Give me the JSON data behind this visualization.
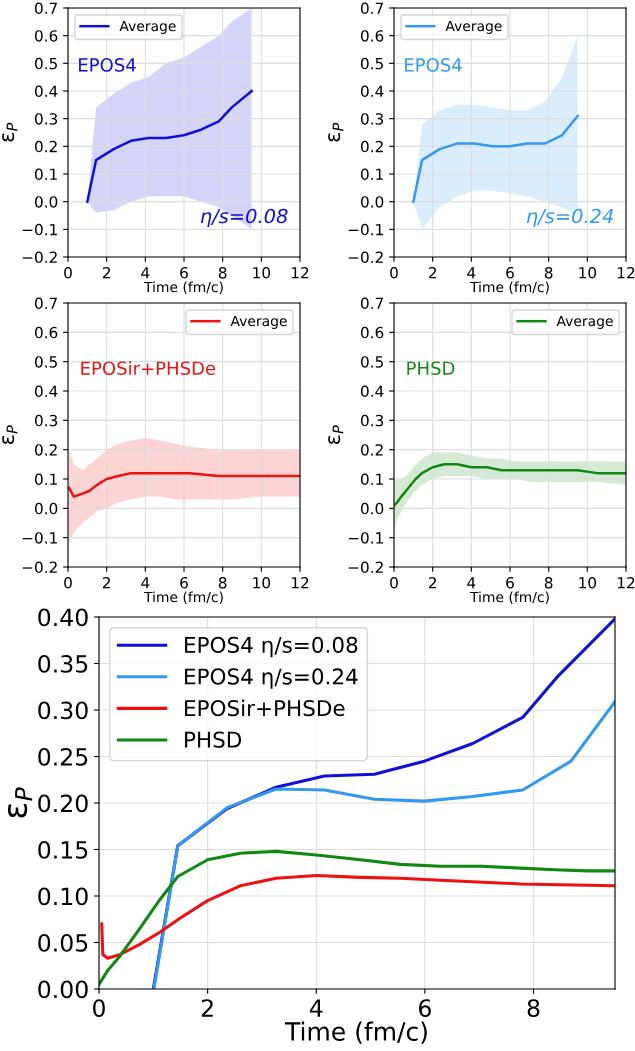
{
  "chart_data": [
    {
      "type": "line",
      "xlabel": "Time (fm/c)",
      "ylabel": "ε$_{P}$",
      "xlim": [
        0,
        12
      ],
      "ylim": [
        -0.2,
        0.7
      ],
      "xticks": [
        0,
        2,
        4,
        6,
        8,
        10,
        12
      ],
      "yticks": [
        {
          "value": -0.2,
          "label": "−0.2"
        },
        {
          "value": -0.1,
          "label": "−0.1"
        },
        {
          "value": 0,
          "label": "0.0"
        },
        {
          "value": 0.1,
          "label": "0.1"
        },
        {
          "value": 0.2,
          "label": "0.2"
        },
        {
          "value": 0.3,
          "label": "0.3"
        },
        {
          "value": 0.4,
          "label": "0.4"
        },
        {
          "value": 0.5,
          "label": "0.5"
        },
        {
          "value": 0.6,
          "label": "0.6"
        },
        {
          "value": 0.7,
          "label": "0.7"
        }
      ],
      "grid": true,
      "legend": "top left",
      "annotations": [
        "EPOS4",
        "η/s=0.08"
      ],
      "series": [
        {
          "name": "Average",
          "color": "#1010d8",
          "x": [
            1.0,
            1.45,
            2.36,
            3.26,
            4.15,
            5.07,
            5.99,
            6.88,
            7.8,
            8.46,
            9.5
          ],
          "values": [
            0.0,
            0.15,
            0.19,
            0.22,
            0.23,
            0.23,
            0.24,
            0.26,
            0.29,
            0.34,
            0.4
          ],
          "lower": [
            0.0,
            -0.04,
            -0.03,
            0.0,
            0.02,
            0.02,
            0.02,
            0.0,
            -0.02,
            -0.05,
            -0.1
          ],
          "upper": [
            0.0,
            0.34,
            0.39,
            0.43,
            0.45,
            0.5,
            0.52,
            0.56,
            0.6,
            0.65,
            0.7
          ]
        }
      ]
    },
    {
      "type": "line",
      "xlabel": "Time (fm/c)",
      "ylabel": "ε$_{P}$",
      "xlim": [
        0,
        12
      ],
      "ylim": [
        -0.2,
        0.7
      ],
      "xticks": [
        0,
        2,
        4,
        6,
        8,
        10,
        12
      ],
      "yticks": [
        {
          "value": -0.2,
          "label": "−0.2"
        },
        {
          "value": -0.1,
          "label": "−0.1"
        },
        {
          "value": 0,
          "label": "0.0"
        },
        {
          "value": 0.1,
          "label": "0.1"
        },
        {
          "value": 0.2,
          "label": "0.2"
        },
        {
          "value": 0.3,
          "label": "0.3"
        },
        {
          "value": 0.4,
          "label": "0.4"
        },
        {
          "value": 0.5,
          "label": "0.5"
        },
        {
          "value": 0.6,
          "label": "0.6"
        },
        {
          "value": 0.7,
          "label": "0.7"
        }
      ],
      "grid": true,
      "legend": "top left",
      "annotations": [
        "EPOS4",
        "η/s=0.24"
      ],
      "series": [
        {
          "name": "Average",
          "color": "#3399ee",
          "x": [
            1.0,
            1.45,
            2.36,
            3.26,
            4.15,
            5.07,
            5.99,
            6.88,
            7.8,
            8.69,
            9.5
          ],
          "values": [
            0.0,
            0.15,
            0.19,
            0.21,
            0.21,
            0.2,
            0.2,
            0.21,
            0.21,
            0.24,
            0.31
          ],
          "lower": [
            0.0,
            -0.1,
            -0.02,
            0.02,
            0.04,
            0.04,
            0.03,
            0.02,
            0.0,
            -0.02,
            -0.05
          ],
          "upper": [
            0.0,
            0.28,
            0.33,
            0.35,
            0.35,
            0.34,
            0.33,
            0.33,
            0.36,
            0.45,
            0.6
          ]
        }
      ]
    },
    {
      "type": "line",
      "xlabel": "Time (fm/c)",
      "ylabel": "ε$_{P}$",
      "xlim": [
        0,
        12
      ],
      "ylim": [
        -0.2,
        0.7
      ],
      "xticks": [
        0,
        2,
        4,
        6,
        8,
        10,
        12
      ],
      "yticks": [
        {
          "value": -0.2,
          "label": "−0.2"
        },
        {
          "value": -0.1,
          "label": "−0.1"
        },
        {
          "value": 0,
          "label": "0.0"
        },
        {
          "value": 0.1,
          "label": "0.1"
        },
        {
          "value": 0.2,
          "label": "0.2"
        },
        {
          "value": 0.3,
          "label": "0.3"
        },
        {
          "value": 0.4,
          "label": "0.4"
        },
        {
          "value": 0.5,
          "label": "0.5"
        },
        {
          "value": 0.6,
          "label": "0.6"
        },
        {
          "value": 0.7,
          "label": "0.7"
        }
      ],
      "grid": true,
      "legend": "top right",
      "annotations": [
        "EPOSir+PHSDe"
      ],
      "series": [
        {
          "name": "Average",
          "color": "#ee1111",
          "x": [
            0.05,
            0.3,
            0.75,
            1.12,
            1.5,
            2.0,
            2.6,
            3.26,
            4.0,
            4.81,
            5.55,
            6.29,
            7.76,
            8.5,
            10.0,
            12.0
          ],
          "values": [
            0.07,
            0.04,
            0.05,
            0.06,
            0.08,
            0.1,
            0.11,
            0.12,
            0.12,
            0.12,
            0.12,
            0.12,
            0.11,
            0.11,
            0.11,
            0.11
          ],
          "lower": [
            -0.12,
            -0.08,
            -0.05,
            -0.03,
            -0.01,
            0.0,
            0.02,
            0.03,
            0.04,
            0.04,
            0.03,
            0.03,
            0.03,
            0.03,
            0.04,
            0.04
          ],
          "upper": [
            0.2,
            0.15,
            0.13,
            0.15,
            0.17,
            0.2,
            0.22,
            0.23,
            0.24,
            0.23,
            0.22,
            0.21,
            0.2,
            0.2,
            0.2,
            0.2
          ]
        }
      ]
    },
    {
      "type": "line",
      "xlabel": "Time (fm/c)",
      "ylabel": "ε$_{P}$",
      "xlim": [
        0,
        12
      ],
      "ylim": [
        -0.2,
        0.7
      ],
      "xticks": [
        0,
        2,
        4,
        6,
        8,
        10,
        12
      ],
      "yticks": [
        {
          "value": -0.2,
          "label": "−0.2"
        },
        {
          "value": -0.1,
          "label": "−0.1"
        },
        {
          "value": 0,
          "label": "0.0"
        },
        {
          "value": 0.1,
          "label": "0.1"
        },
        {
          "value": 0.2,
          "label": "0.2"
        },
        {
          "value": 0.3,
          "label": "0.3"
        },
        {
          "value": 0.4,
          "label": "0.4"
        },
        {
          "value": 0.5,
          "label": "0.5"
        },
        {
          "value": 0.6,
          "label": "0.6"
        },
        {
          "value": 0.7,
          "label": "0.7"
        }
      ],
      "grid": true,
      "legend": "top right",
      "annotations": [
        "PHSD"
      ],
      "series": [
        {
          "name": "Average",
          "color": "#118811",
          "x": [
            0.0,
            0.16,
            0.38,
            0.75,
            1.12,
            1.45,
            2.0,
            2.6,
            3.26,
            4.0,
            4.81,
            5.55,
            6.29,
            7.03,
            7.76,
            8.5,
            9.5,
            10.5,
            12.0
          ],
          "values": [
            0.01,
            0.02,
            0.04,
            0.07,
            0.1,
            0.12,
            0.14,
            0.15,
            0.15,
            0.14,
            0.14,
            0.13,
            0.13,
            0.13,
            0.13,
            0.13,
            0.13,
            0.12,
            0.12
          ],
          "lower": [
            -0.07,
            -0.04,
            -0.01,
            0.03,
            0.06,
            0.08,
            0.1,
            0.11,
            0.11,
            0.11,
            0.1,
            0.1,
            0.1,
            0.09,
            0.09,
            0.09,
            0.09,
            0.09,
            0.08
          ],
          "upper": [
            0.1,
            0.1,
            0.1,
            0.12,
            0.15,
            0.17,
            0.19,
            0.19,
            0.19,
            0.18,
            0.17,
            0.17,
            0.16,
            0.16,
            0.16,
            0.16,
            0.16,
            0.16,
            0.16
          ]
        }
      ]
    },
    {
      "type": "line",
      "xlabel": "Time (fm/c)",
      "ylabel": "ε$_{P}$",
      "xlim": [
        0,
        9.5
      ],
      "ylim": [
        0,
        0.4
      ],
      "xticks": [
        0,
        2,
        4,
        6,
        8
      ],
      "yticks": [
        {
          "value": 0,
          "label": "0.00"
        },
        {
          "value": 0.05,
          "label": "0.05"
        },
        {
          "value": 0.1,
          "label": "0.10"
        },
        {
          "value": 0.15,
          "label": "0.15"
        },
        {
          "value": 0.2,
          "label": "0.20"
        },
        {
          "value": 0.25,
          "label": "0.25"
        },
        {
          "value": 0.3,
          "label": "0.30"
        },
        {
          "value": 0.35,
          "label": "0.35"
        },
        {
          "value": 0.4,
          "label": "0.40"
        }
      ],
      "grid": true,
      "legend": "top left",
      "series": [
        {
          "name": "EPOS4 η/s=0.08",
          "color": "#1010d8",
          "x": [
            1.0,
            1.45,
            2.36,
            3.26,
            4.15,
            5.07,
            5.99,
            6.88,
            7.8,
            8.46,
            9.5
          ],
          "values": [
            0.0,
            0.154,
            0.194,
            0.217,
            0.229,
            0.231,
            0.245,
            0.264,
            0.292,
            0.337,
            0.398
          ]
        },
        {
          "name": "EPOS4 η/s=0.24",
          "color": "#3399ee",
          "x": [
            1.01,
            1.45,
            2.36,
            3.26,
            4.15,
            5.07,
            5.99,
            6.88,
            7.8,
            8.69,
            9.5
          ],
          "values": [
            0.0,
            0.154,
            0.195,
            0.215,
            0.214,
            0.204,
            0.202,
            0.207,
            0.214,
            0.245,
            0.309
          ]
        },
        {
          "name": "EPOSir+PHSDe",
          "color": "#ee1111",
          "x": [
            0.05,
            0.07,
            0.16,
            0.38,
            0.75,
            1.12,
            1.49,
            2.0,
            2.6,
            3.26,
            4.0,
            4.81,
            5.55,
            6.29,
            7.76,
            8.5,
            9.5
          ],
          "values": [
            0.07,
            0.037,
            0.033,
            0.037,
            0.048,
            0.061,
            0.076,
            0.095,
            0.111,
            0.119,
            0.122,
            0.12,
            0.119,
            0.117,
            0.113,
            0.112,
            0.111
          ]
        },
        {
          "name": "PHSD",
          "color": "#118811",
          "x": [
            0.0,
            0.16,
            0.38,
            0.75,
            1.12,
            1.45,
            2.0,
            2.6,
            3.26,
            4.0,
            4.81,
            5.55,
            6.29,
            7.03,
            7.76,
            8.5,
            9.0,
            9.5
          ],
          "values": [
            0.005,
            0.02,
            0.035,
            0.065,
            0.096,
            0.121,
            0.139,
            0.146,
            0.148,
            0.144,
            0.139,
            0.134,
            0.132,
            0.132,
            0.13,
            0.128,
            0.127,
            0.127
          ]
        }
      ]
    }
  ]
}
